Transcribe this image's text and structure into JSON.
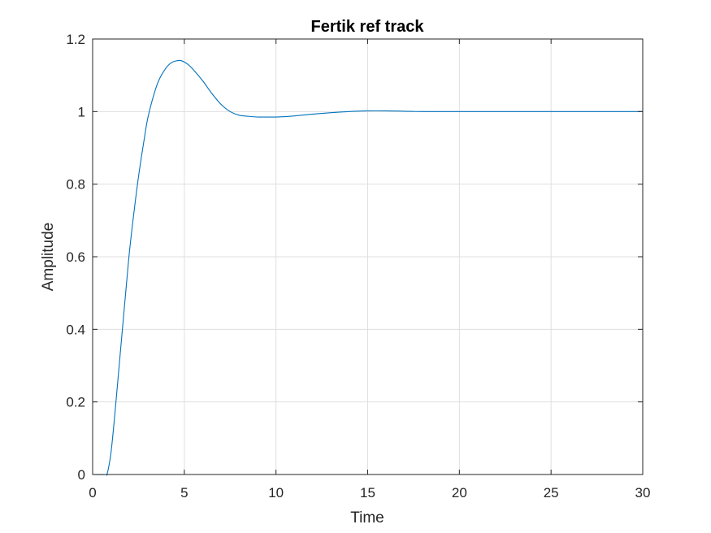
{
  "chart_data": {
    "type": "line",
    "title": "Fertik ref track",
    "xlabel": "Time",
    "ylabel": "Amplitude",
    "xlim": [
      0,
      30
    ],
    "ylim": [
      0,
      1.2
    ],
    "xticks": [
      "0",
      "5",
      "10",
      "15",
      "20",
      "25",
      "30"
    ],
    "yticks": [
      "0",
      "0.2",
      "0.4",
      "0.6",
      "0.8",
      "1",
      "1.2"
    ],
    "grid": true,
    "box": true,
    "series": [
      {
        "color": "#0072bd",
        "x": [
          0,
          0.7,
          0.8,
          1.0,
          1.2,
          1.5,
          1.8,
          2.0,
          2.2,
          2.5,
          2.8,
          3.0,
          3.3,
          3.6,
          4.0,
          4.3,
          4.6,
          4.85,
          5.2,
          5.5,
          6.0,
          6.5,
          7.0,
          7.5,
          8.0,
          8.5,
          9.0,
          9.5,
          10.0,
          10.5,
          11.0,
          12.0,
          13.0,
          14.0,
          15.0,
          16.0,
          17.0,
          18.0,
          19.0,
          20.0,
          22.0,
          25.0,
          27.0,
          30.0
        ],
        "y": [
          0,
          0,
          0.003,
          0.06,
          0.16,
          0.33,
          0.5,
          0.61,
          0.7,
          0.82,
          0.92,
          0.98,
          1.04,
          1.085,
          1.12,
          1.135,
          1.14,
          1.14,
          1.13,
          1.115,
          1.085,
          1.05,
          1.02,
          1.0,
          0.99,
          0.987,
          0.985,
          0.985,
          0.985,
          0.986,
          0.988,
          0.993,
          0.997,
          1.0,
          1.002,
          1.002,
          1.001,
          1.0,
          1.0,
          1.0,
          1.0,
          1.0,
          1.0,
          1.0
        ]
      }
    ]
  }
}
